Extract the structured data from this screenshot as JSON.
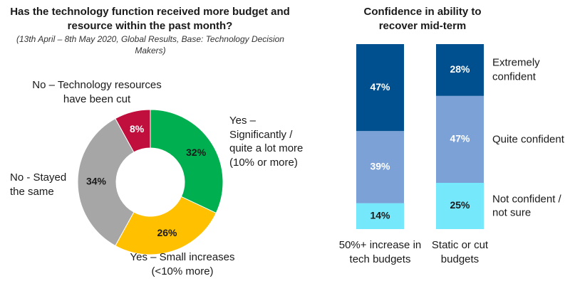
{
  "chart_data": [
    {
      "type": "donut",
      "title": "Has the technology function received more budget and resource within the past month?",
      "subtitle": "(13th April – 8th May 2020, Global Results, Base: Technology Decision Makers)",
      "categories": [
        "Yes – Significantly / quite a lot more (10% or more)",
        "Yes – Small increases (<10% more)",
        "No - Stayed the same",
        "No – Technology resources have been cut"
      ],
      "values": [
        32,
        26,
        34,
        8
      ],
      "value_labels": [
        "32%",
        "26%",
        "34%",
        "8%"
      ],
      "colors": [
        "#00b050",
        "#ffc000",
        "#a6a6a6",
        "#c00f3c"
      ]
    },
    {
      "type": "stacked_bar",
      "title": "Confidence in ability to recover mid-term",
      "categories": [
        "50%+ increase in tech budgets",
        "Static or cut budgets"
      ],
      "series": [
        {
          "name": "Not confident / not sure",
          "color": "#75e8fc",
          "label_color": "#1a1a1a",
          "values": [
            14,
            25
          ],
          "value_labels": [
            "14%",
            "25%"
          ]
        },
        {
          "name": "Quite confident",
          "color": "#7ba1d6",
          "label_color": "#ffffff",
          "values": [
            39,
            47
          ],
          "value_labels": [
            "39%",
            "47%"
          ]
        },
        {
          "name": "Extremely confident",
          "color": "#00508f",
          "label_color": "#ffffff",
          "values": [
            47,
            28
          ],
          "value_labels": [
            "47%",
            "28%"
          ]
        }
      ]
    }
  ]
}
